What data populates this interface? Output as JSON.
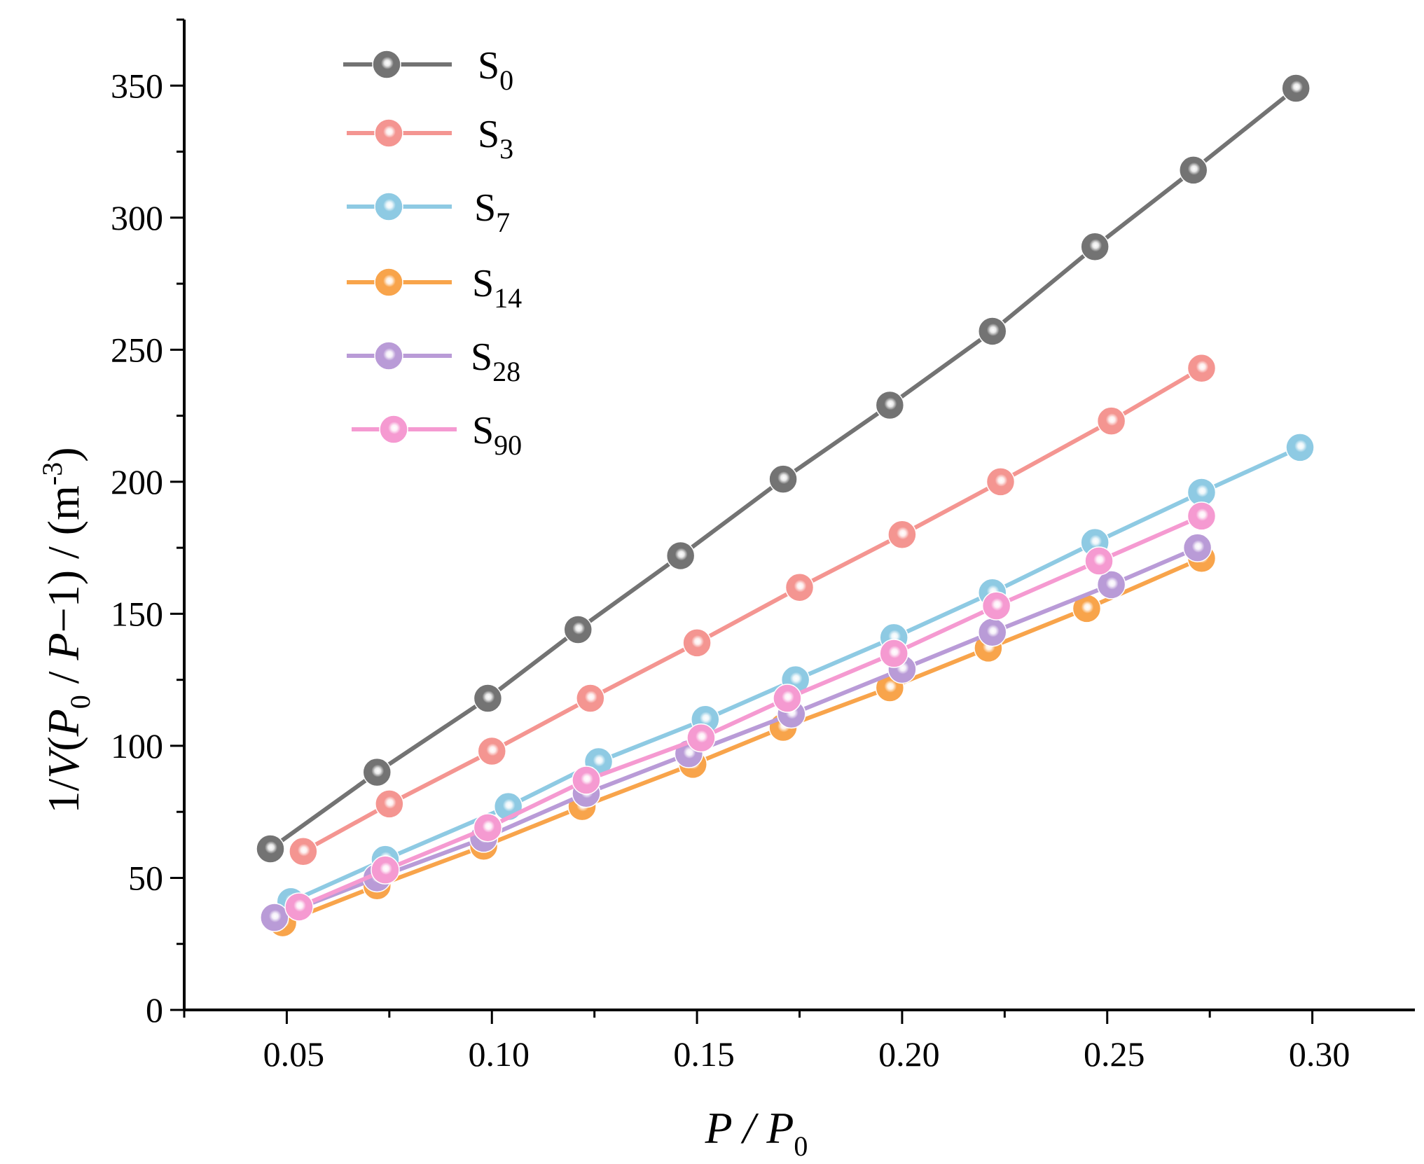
{
  "chart_data": {
    "type": "line",
    "title": "",
    "xlabel": {
      "main": "P / P",
      "sub": "0"
    },
    "ylabel": {
      "prefix": "1/",
      "italic_v": "V",
      "open": "(",
      "italic_p0": "P",
      "sub0": "0",
      "mid": " / ",
      "italic_p": "P",
      "tail": "−1)  / (m",
      "sup": "-3",
      "close": ")"
    },
    "xlim": [
      0.025,
      0.325
    ],
    "ylim": [
      0,
      375
    ],
    "xticks": [
      0.05,
      0.1,
      0.15,
      0.2,
      0.25,
      0.3
    ],
    "xtick_labels": [
      "0.05",
      "0.10",
      "0.15",
      "0.20",
      "0.25",
      "0.30"
    ],
    "yticks": [
      0,
      50,
      100,
      150,
      200,
      250,
      300,
      350
    ],
    "ytick_labels": [
      "0",
      "50",
      "100",
      "150",
      "200",
      "250",
      "300",
      "350"
    ],
    "legend_position": "top-left",
    "series": [
      {
        "name": "S",
        "sub": "0",
        "color": "#737373",
        "x": [
          0.046,
          0.072,
          0.099,
          0.121,
          0.146,
          0.171,
          0.197,
          0.222,
          0.247,
          0.271,
          0.296
        ],
        "y": [
          61,
          90,
          118,
          144,
          172,
          201,
          229,
          257,
          289,
          318,
          349
        ]
      },
      {
        "name": "S",
        "sub": "3",
        "color": "#f49591",
        "x": [
          0.054,
          0.075,
          0.1,
          0.124,
          0.15,
          0.175,
          0.2,
          0.224,
          0.251,
          0.273
        ],
        "y": [
          60,
          78,
          98,
          118,
          139,
          160,
          180,
          200,
          223,
          243
        ]
      },
      {
        "name": "S",
        "sub": "7",
        "color": "#8ecae3",
        "x": [
          0.051,
          0.074,
          0.104,
          0.126,
          0.152,
          0.174,
          0.198,
          0.222,
          0.247,
          0.273,
          0.297
        ],
        "y": [
          41,
          57,
          77,
          94,
          110,
          125,
          141,
          158,
          177,
          196,
          213
        ]
      },
      {
        "name": "S",
        "sub": "14",
        "color": "#f8a44b",
        "x": [
          0.049,
          0.072,
          0.098,
          0.122,
          0.149,
          0.171,
          0.197,
          0.221,
          0.245,
          0.273
        ],
        "y": [
          33,
          47,
          62,
          77,
          93,
          107,
          122,
          137,
          152,
          171
        ]
      },
      {
        "name": "S",
        "sub": "28",
        "color": "#b99bd7",
        "x": [
          0.047,
          0.072,
          0.098,
          0.123,
          0.148,
          0.173,
          0.2,
          0.222,
          0.251,
          0.272
        ],
        "y": [
          35,
          50,
          65,
          82,
          97,
          112,
          129,
          143,
          161,
          175
        ]
      },
      {
        "name": "S",
        "sub": "90",
        "color": "#f59ad1",
        "x": [
          0.053,
          0.074,
          0.099,
          0.123,
          0.151,
          0.172,
          0.198,
          0.223,
          0.248,
          0.273
        ],
        "y": [
          39,
          53,
          69,
          87,
          103,
          118,
          135,
          153,
          170,
          187
        ]
      }
    ]
  }
}
